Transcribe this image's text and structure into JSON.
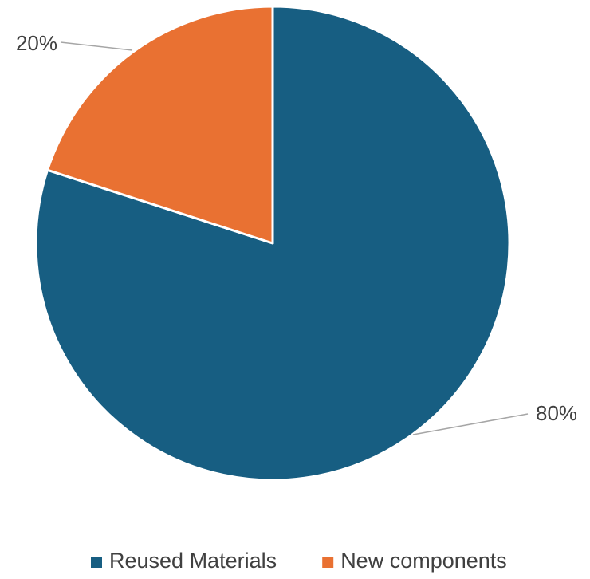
{
  "chart_data": {
    "type": "pie",
    "categories": [
      "Reused Materials",
      "New components"
    ],
    "values": [
      80,
      20
    ],
    "data_labels": [
      "80%",
      "20%"
    ],
    "colors": [
      "#175E82",
      "#E97132"
    ],
    "legend_position": "bottom",
    "start_angle_deg": 0,
    "direction": "clockwise"
  }
}
